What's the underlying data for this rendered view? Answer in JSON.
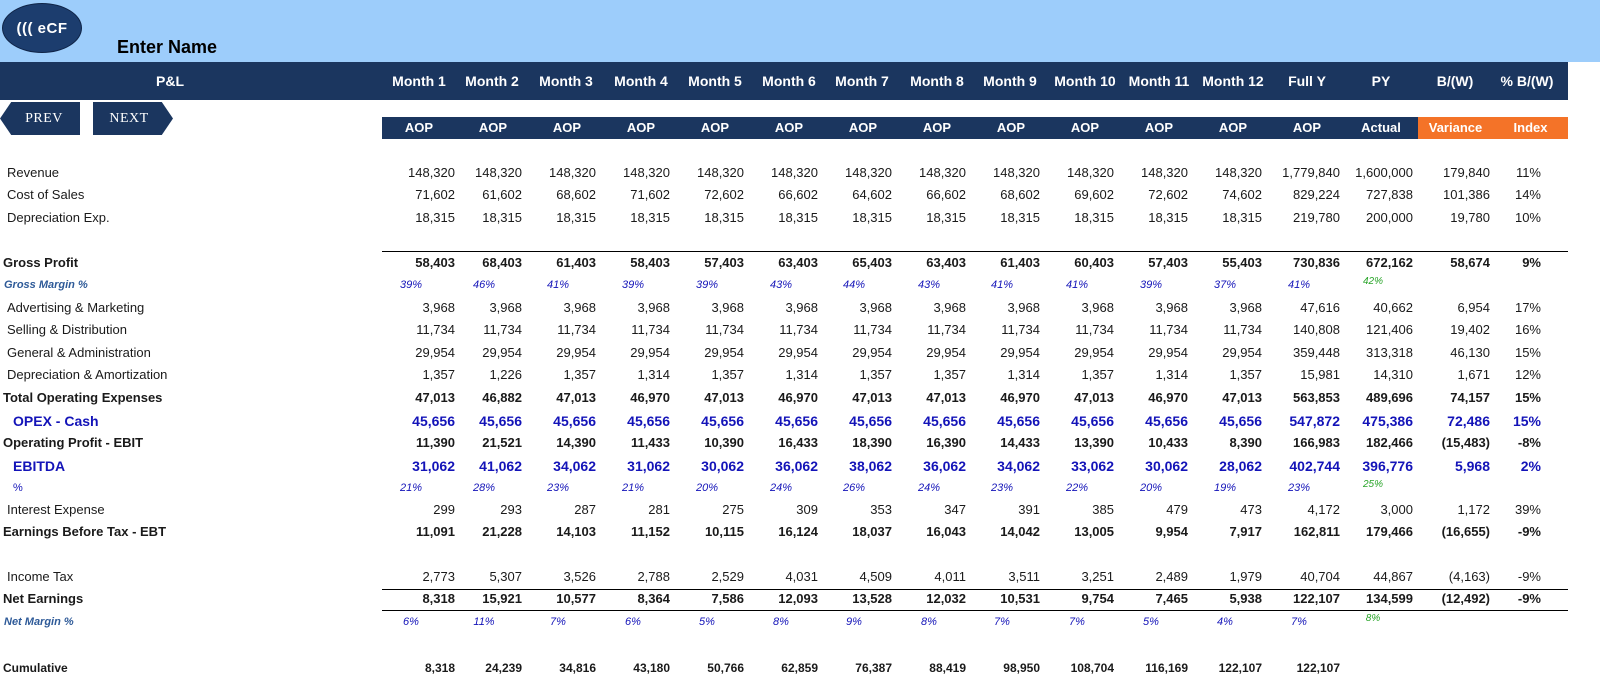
{
  "header": {
    "logo_text": "((( eCF",
    "company": "Enter Name",
    "pl_label": "P&L"
  },
  "nav": {
    "prev": "PREV",
    "next": "NEXT"
  },
  "columns": [
    "Month 1",
    "Month 2",
    "Month 3",
    "Month 4",
    "Month 5",
    "Month 6",
    "Month 7",
    "Month 8",
    "Month 9",
    "Month 10",
    "Month 11",
    "Month 12",
    "Full Y",
    "PY",
    "B/(W)",
    "% B/(W)"
  ],
  "subcolumns": [
    "AOP",
    "AOP",
    "AOP",
    "AOP",
    "AOP",
    "AOP",
    "AOP",
    "AOP",
    "AOP",
    "AOP",
    "AOP",
    "AOP",
    "AOP",
    "Actual",
    "Variance",
    "Index"
  ],
  "rows": [
    {
      "label": "Revenue",
      "values": [
        "148,320",
        "148,320",
        "148,320",
        "148,320",
        "148,320",
        "148,320",
        "148,320",
        "148,320",
        "148,320",
        "148,320",
        "148,320",
        "148,320",
        "1,779,840",
        "1,600,000",
        "179,840",
        "11%"
      ]
    },
    {
      "label": "Cost of Sales",
      "values": [
        "71,602",
        "61,602",
        "68,602",
        "71,602",
        "72,602",
        "66,602",
        "64,602",
        "66,602",
        "68,602",
        "69,602",
        "72,602",
        "74,602",
        "829,224",
        "727,838",
        "101,386",
        "14%"
      ]
    },
    {
      "label": "Depreciation Exp.",
      "values": [
        "18,315",
        "18,315",
        "18,315",
        "18,315",
        "18,315",
        "18,315",
        "18,315",
        "18,315",
        "18,315",
        "18,315",
        "18,315",
        "18,315",
        "219,780",
        "200,000",
        "19,780",
        "10%"
      ]
    },
    {
      "label": "Gross Profit",
      "values": [
        "58,403",
        "68,403",
        "61,403",
        "58,403",
        "57,403",
        "63,403",
        "65,403",
        "63,403",
        "61,403",
        "60,403",
        "57,403",
        "55,403",
        "730,836",
        "672,162",
        "58,674",
        "9%"
      ]
    },
    {
      "label": "Gross Margin %",
      "values": [
        "39%",
        "46%",
        "41%",
        "39%",
        "39%",
        "43%",
        "44%",
        "43%",
        "41%",
        "41%",
        "39%",
        "37%",
        "41%",
        "42%",
        "",
        ""
      ]
    },
    {
      "label": "Advertising & Marketing",
      "values": [
        "3,968",
        "3,968",
        "3,968",
        "3,968",
        "3,968",
        "3,968",
        "3,968",
        "3,968",
        "3,968",
        "3,968",
        "3,968",
        "3,968",
        "47,616",
        "40,662",
        "6,954",
        "17%"
      ]
    },
    {
      "label": "Selling & Distribution",
      "values": [
        "11,734",
        "11,734",
        "11,734",
        "11,734",
        "11,734",
        "11,734",
        "11,734",
        "11,734",
        "11,734",
        "11,734",
        "11,734",
        "11,734",
        "140,808",
        "121,406",
        "19,402",
        "16%"
      ]
    },
    {
      "label": "General & Administration",
      "values": [
        "29,954",
        "29,954",
        "29,954",
        "29,954",
        "29,954",
        "29,954",
        "29,954",
        "29,954",
        "29,954",
        "29,954",
        "29,954",
        "29,954",
        "359,448",
        "313,318",
        "46,130",
        "15%"
      ]
    },
    {
      "label": "Depreciation & Amortization",
      "values": [
        "1,357",
        "1,226",
        "1,357",
        "1,314",
        "1,357",
        "1,314",
        "1,357",
        "1,357",
        "1,314",
        "1,357",
        "1,314",
        "1,357",
        "15,981",
        "14,310",
        "1,671",
        "12%"
      ]
    },
    {
      "label": "Total Operating Expenses",
      "values": [
        "47,013",
        "46,882",
        "47,013",
        "46,970",
        "47,013",
        "46,970",
        "47,013",
        "47,013",
        "46,970",
        "47,013",
        "46,970",
        "47,013",
        "563,853",
        "489,696",
        "74,157",
        "15%"
      ]
    },
    {
      "label": "OPEX - Cash",
      "values": [
        "45,656",
        "45,656",
        "45,656",
        "45,656",
        "45,656",
        "45,656",
        "45,656",
        "45,656",
        "45,656",
        "45,656",
        "45,656",
        "45,656",
        "547,872",
        "475,386",
        "72,486",
        "15%"
      ]
    },
    {
      "label": "Operating Profit - EBIT",
      "values": [
        "11,390",
        "21,521",
        "14,390",
        "11,433",
        "10,390",
        "16,433",
        "18,390",
        "16,390",
        "14,433",
        "13,390",
        "10,433",
        "8,390",
        "166,983",
        "182,466",
        "(15,483)",
        "-8%"
      ]
    },
    {
      "label": "EBITDA",
      "values": [
        "31,062",
        "41,062",
        "34,062",
        "31,062",
        "30,062",
        "36,062",
        "38,062",
        "36,062",
        "34,062",
        "33,062",
        "30,062",
        "28,062",
        "402,744",
        "396,776",
        "5,968",
        "2%"
      ]
    },
    {
      "label": "%",
      "values": [
        "21%",
        "28%",
        "23%",
        "21%",
        "20%",
        "24%",
        "26%",
        "24%",
        "23%",
        "22%",
        "20%",
        "19%",
        "23%",
        "25%",
        "",
        ""
      ]
    },
    {
      "label": "Interest Expense",
      "values": [
        "299",
        "293",
        "287",
        "281",
        "275",
        "309",
        "353",
        "347",
        "391",
        "385",
        "479",
        "473",
        "4,172",
        "3,000",
        "1,172",
        "39%"
      ]
    },
    {
      "label": "Earnings Before Tax - EBT",
      "values": [
        "11,091",
        "21,228",
        "14,103",
        "11,152",
        "10,115",
        "16,124",
        "18,037",
        "16,043",
        "14,042",
        "13,005",
        "9,954",
        "7,917",
        "162,811",
        "179,466",
        "(16,655)",
        "-9%"
      ]
    },
    {
      "label": "Income Tax",
      "values": [
        "2,773",
        "5,307",
        "3,526",
        "2,788",
        "2,529",
        "4,031",
        "4,509",
        "4,011",
        "3,511",
        "3,251",
        "2,489",
        "1,979",
        "40,704",
        "44,867",
        "(4,163)",
        "-9%"
      ]
    },
    {
      "label": "Net Earnings",
      "values": [
        "8,318",
        "15,921",
        "10,577",
        "8,364",
        "7,586",
        "12,093",
        "13,528",
        "12,032",
        "10,531",
        "9,754",
        "7,465",
        "5,938",
        "122,107",
        "134,599",
        "(12,492)",
        "-9%"
      ]
    },
    {
      "label": "Net Margin %",
      "values": [
        "6%",
        "11%",
        "7%",
        "6%",
        "5%",
        "8%",
        "9%",
        "8%",
        "7%",
        "7%",
        "5%",
        "4%",
        "7%",
        "8%",
        "",
        ""
      ]
    },
    {
      "label": "Cumulative",
      "values": [
        "8,318",
        "24,239",
        "34,816",
        "43,180",
        "50,766",
        "62,859",
        "76,387",
        "88,419",
        "98,950",
        "108,704",
        "116,169",
        "122,107",
        "122,107",
        "",
        "",
        ""
      ]
    }
  ]
}
